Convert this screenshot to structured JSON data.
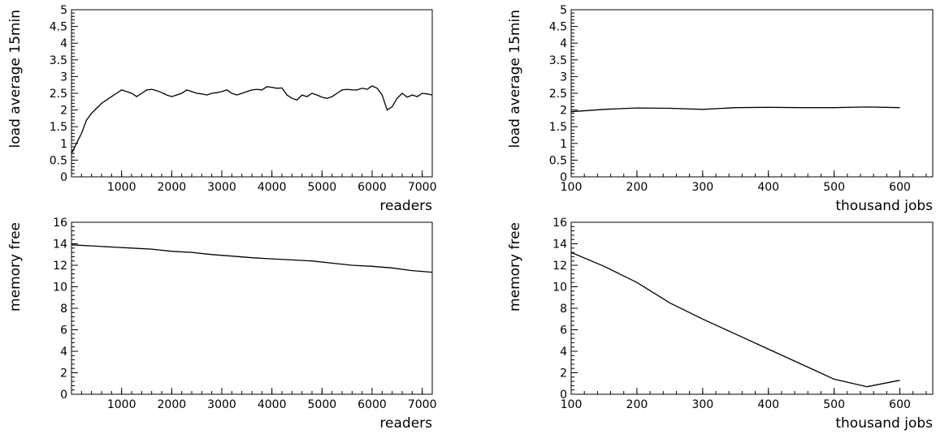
{
  "chart_data": [
    {
      "type": "line",
      "xlabel": "readers",
      "ylabel": "load average 15min",
      "xlim": [
        0,
        7200
      ],
      "ylim": [
        0,
        5
      ],
      "xticks": [
        1000,
        2000,
        3000,
        4000,
        5000,
        6000,
        7000
      ],
      "xtick_labels": [
        "1000",
        "2000",
        "3000",
        "4000",
        "5000",
        "6000",
        "7000"
      ],
      "yticks": [
        0,
        0.5,
        1,
        1.5,
        2,
        2.5,
        3,
        3.5,
        4,
        4.5,
        5
      ],
      "ytick_labels": [
        "0",
        "0.5",
        "1",
        "1.5",
        "2",
        "2.5",
        "3",
        "3.5",
        "4",
        "4.5",
        "5"
      ],
      "x": [
        0,
        100,
        200,
        300,
        400,
        500,
        600,
        700,
        800,
        900,
        1000,
        1100,
        1200,
        1300,
        1400,
        1500,
        1600,
        1700,
        1800,
        1900,
        2000,
        2100,
        2200,
        2300,
        2400,
        2500,
        2600,
        2700,
        2800,
        2900,
        3000,
        3100,
        3200,
        3300,
        3400,
        3500,
        3600,
        3700,
        3800,
        3900,
        4000,
        4100,
        4200,
        4300,
        4400,
        4500,
        4600,
        4700,
        4800,
        4900,
        5000,
        5100,
        5200,
        5300,
        5400,
        5500,
        5600,
        5700,
        5800,
        5900,
        6000,
        6100,
        6200,
        6300,
        6400,
        6500,
        6600,
        6700,
        6800,
        6900,
        7000,
        7100,
        7200
      ],
      "y": [
        0.7,
        1.0,
        1.3,
        1.7,
        1.9,
        2.05,
        2.2,
        2.3,
        2.4,
        2.5,
        2.6,
        2.55,
        2.5,
        2.4,
        2.5,
        2.6,
        2.62,
        2.58,
        2.52,
        2.45,
        2.4,
        2.45,
        2.5,
        2.6,
        2.55,
        2.5,
        2.48,
        2.45,
        2.5,
        2.52,
        2.55,
        2.6,
        2.5,
        2.45,
        2.5,
        2.55,
        2.6,
        2.62,
        2.6,
        2.7,
        2.68,
        2.65,
        2.66,
        2.45,
        2.35,
        2.3,
        2.45,
        2.4,
        2.5,
        2.45,
        2.38,
        2.35,
        2.4,
        2.5,
        2.6,
        2.62,
        2.6,
        2.6,
        2.65,
        2.62,
        2.72,
        2.65,
        2.45,
        2.0,
        2.1,
        2.35,
        2.5,
        2.38,
        2.45,
        2.4,
        2.5,
        2.48,
        2.45
      ]
    },
    {
      "type": "line",
      "xlabel": "thousand jobs",
      "ylabel": "load average 15min",
      "xlim": [
        100,
        650
      ],
      "ylim": [
        0,
        5
      ],
      "xticks": [
        100,
        200,
        300,
        400,
        500,
        600
      ],
      "xtick_labels": [
        "100",
        "200",
        "300",
        "400",
        "500",
        "600"
      ],
      "yticks": [
        0,
        0.5,
        1,
        1.5,
        2,
        2.5,
        3,
        3.5,
        4,
        4.5,
        5
      ],
      "ytick_labels": [
        "0",
        "0.5",
        "1",
        "1.5",
        "2",
        "2.5",
        "3",
        "3.5",
        "4",
        "4.5",
        "5"
      ],
      "x": [
        100,
        150,
        200,
        250,
        300,
        350,
        400,
        450,
        500,
        550,
        600
      ],
      "y": [
        1.95,
        2.02,
        2.06,
        2.05,
        2.02,
        2.07,
        2.08,
        2.07,
        2.07,
        2.09,
        2.07
      ]
    },
    {
      "type": "line",
      "xlabel": "readers",
      "ylabel": "memory free",
      "xlim": [
        0,
        7200
      ],
      "ylim": [
        0,
        16
      ],
      "xticks": [
        1000,
        2000,
        3000,
        4000,
        5000,
        6000,
        7000
      ],
      "xtick_labels": [
        "1000",
        "2000",
        "3000",
        "4000",
        "5000",
        "6000",
        "7000"
      ],
      "yticks": [
        0,
        2,
        4,
        6,
        8,
        10,
        12,
        14,
        16
      ],
      "ytick_labels": [
        "0",
        "2",
        "4",
        "6",
        "8",
        "10",
        "12",
        "14",
        "16"
      ],
      "x": [
        0,
        400,
        800,
        1200,
        1600,
        2000,
        2400,
        2800,
        3200,
        3600,
        4000,
        4400,
        4800,
        5200,
        5600,
        6000,
        6400,
        6800,
        7200
      ],
      "y": [
        13.9,
        13.8,
        13.7,
        13.6,
        13.5,
        13.3,
        13.2,
        13.0,
        12.85,
        12.7,
        12.6,
        12.5,
        12.4,
        12.2,
        12.0,
        11.9,
        11.75,
        11.5,
        11.35
      ]
    },
    {
      "type": "line",
      "xlabel": "thousand jobs",
      "ylabel": "memory free",
      "xlim": [
        100,
        650
      ],
      "ylim": [
        0,
        16
      ],
      "xticks": [
        100,
        200,
        300,
        400,
        500,
        600
      ],
      "xtick_labels": [
        "100",
        "200",
        "300",
        "400",
        "500",
        "600"
      ],
      "yticks": [
        0,
        2,
        4,
        6,
        8,
        10,
        12,
        14,
        16
      ],
      "ytick_labels": [
        "0",
        "2",
        "4",
        "6",
        "8",
        "10",
        "12",
        "14",
        "16"
      ],
      "x": [
        100,
        150,
        200,
        250,
        300,
        350,
        400,
        450,
        500,
        550,
        600
      ],
      "y": [
        13.2,
        11.9,
        10.4,
        8.5,
        7.0,
        5.6,
        4.2,
        2.8,
        1.4,
        0.7,
        1.3
      ]
    }
  ]
}
